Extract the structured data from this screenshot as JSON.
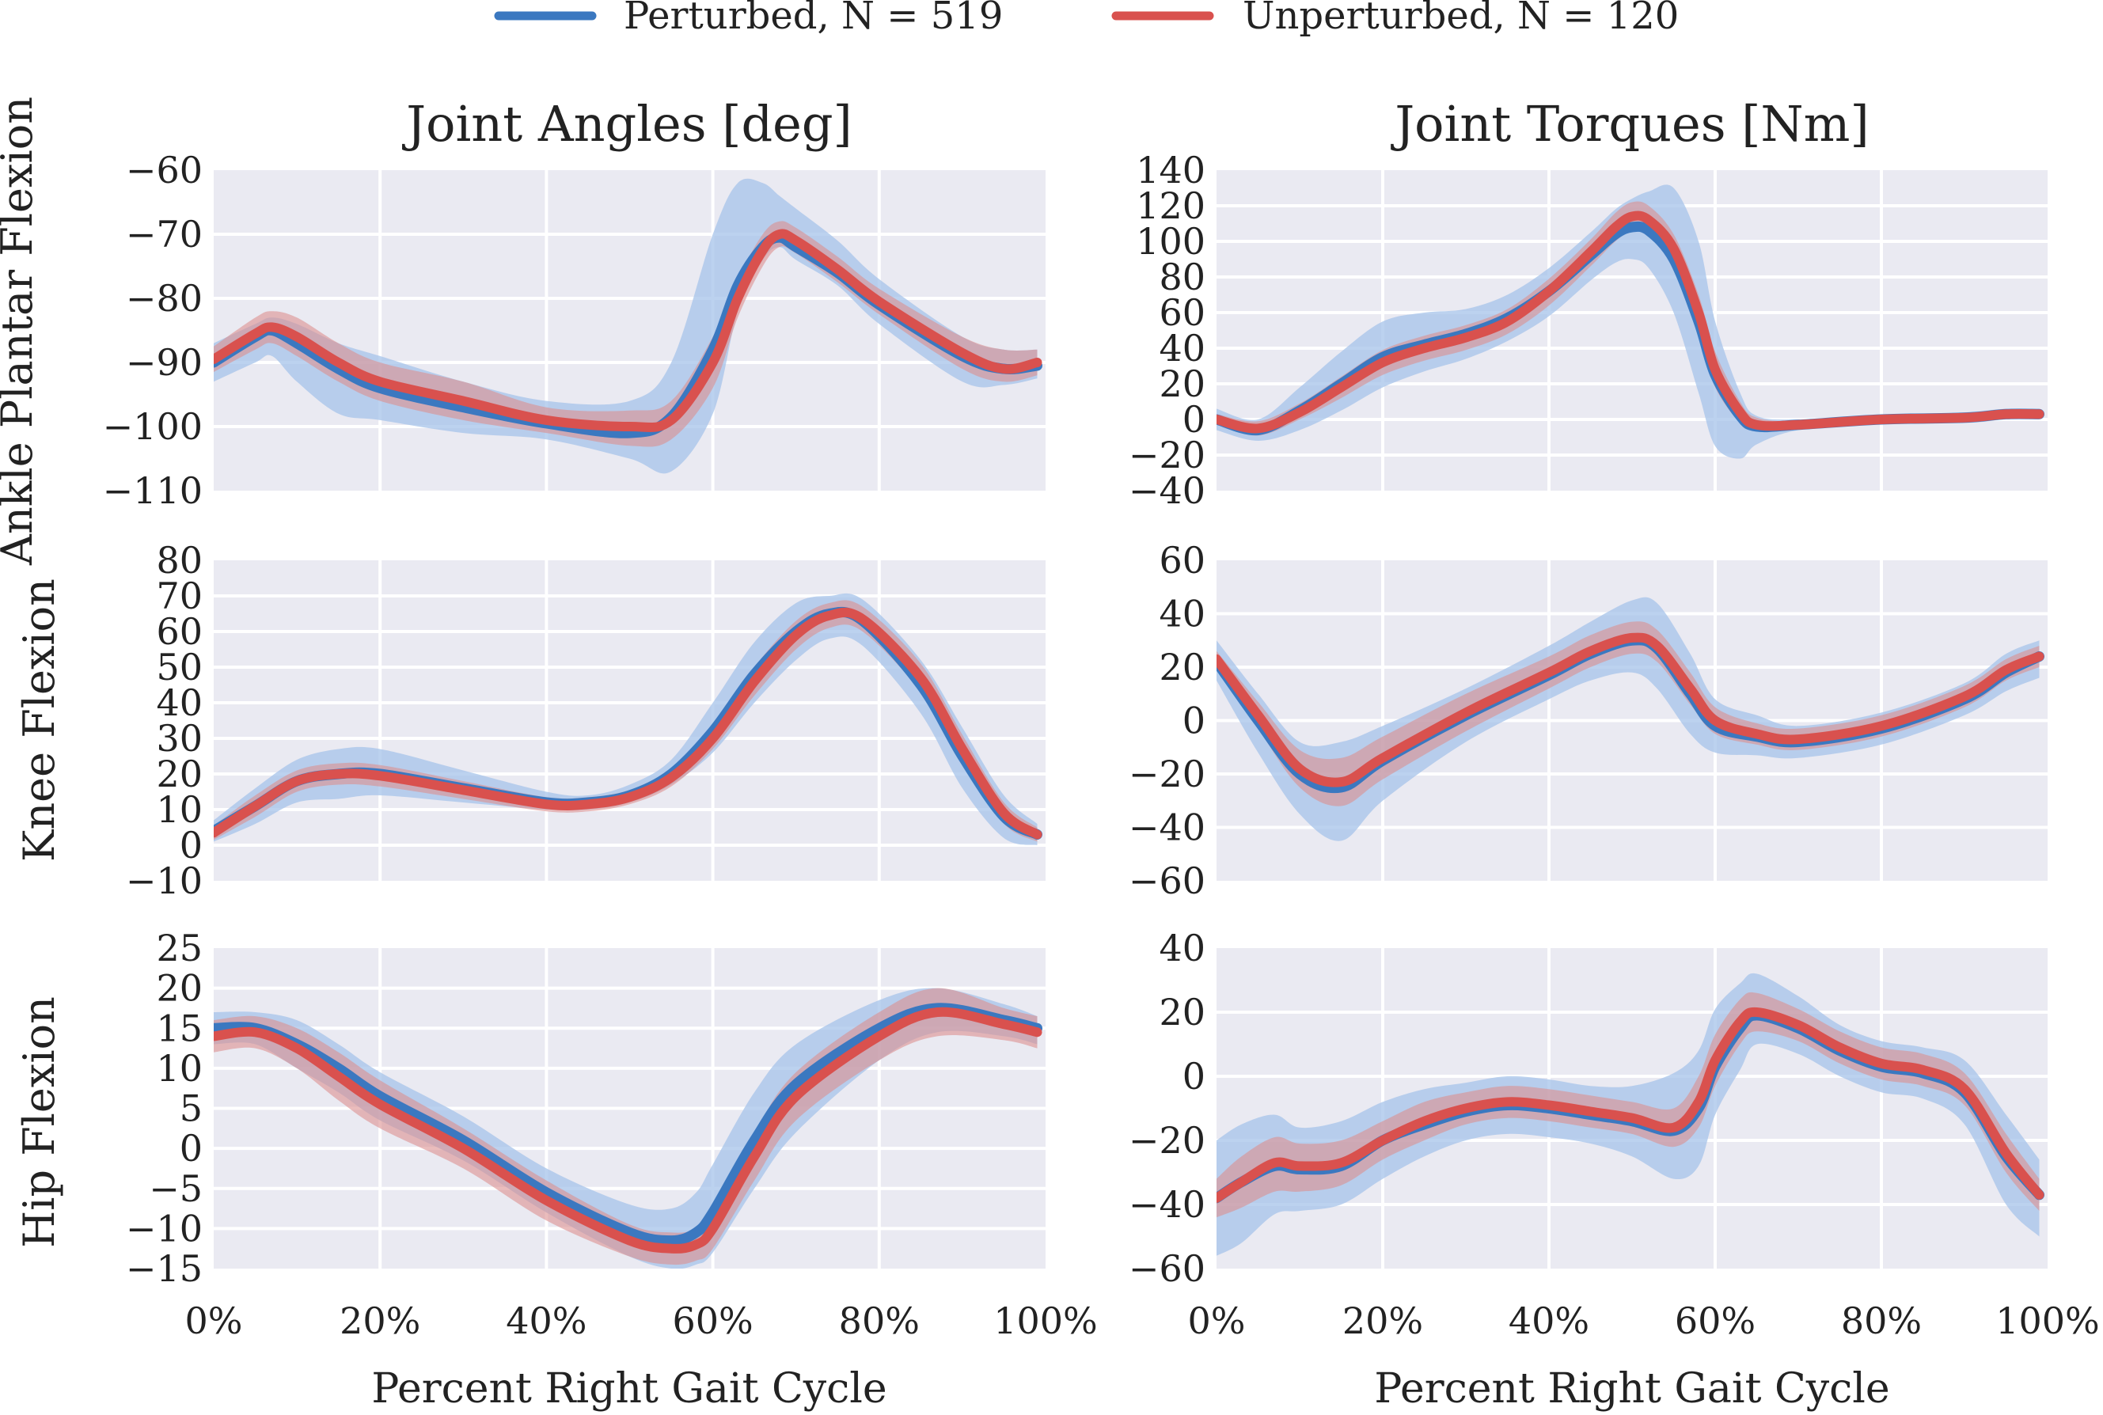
{
  "legend": {
    "entries": [
      {
        "label": "Perturbed, N = 519",
        "color": "#3b78c0"
      },
      {
        "label": "Unperturbed, N = 120",
        "color": "#d9514e"
      }
    ]
  },
  "column_titles": [
    "Joint Angles [deg]",
    "Joint Torques [Nm]"
  ],
  "row_labels": [
    "Ankle Plantar Flexion",
    "Knee Flexion",
    "Hip Flexion"
  ],
  "xlabel": "Percent Right Gait Cycle",
  "x_tick_labels": [
    "0%",
    "20%",
    "40%",
    "60%",
    "80%",
    "100%"
  ],
  "colors": {
    "axes_background": "#eaeaf2",
    "grid": "#ffffff",
    "perturbed_line": "#3b78c0",
    "perturbed_band": "#a6c3ea",
    "unperturbed_line": "#d9514e",
    "unperturbed_band": "#dc8f90"
  },
  "chart_data": [
    {
      "type": "line",
      "panel": "ankle-angle",
      "title": "Joint Angles [deg]",
      "ylabel": "Ankle Plantar Flexion",
      "xlabel": "",
      "x": [
        0,
        5,
        7,
        10,
        15,
        20,
        30,
        40,
        50,
        55,
        60,
        63,
        66,
        68,
        70,
        75,
        80,
        90,
        95,
        99
      ],
      "xlim": [
        0,
        100
      ],
      "ylim": [
        -110,
        -60
      ],
      "yticks": [
        -60,
        -70,
        -80,
        -90,
        -100,
        -110
      ],
      "ytick_labels": [
        "−60",
        "−70",
        "−80",
        "−90",
        "−100",
        "−110"
      ],
      "series": [
        {
          "name": "Perturbed, N = 519",
          "mean": [
            -90,
            -86,
            -85,
            -87,
            -91,
            -94,
            -97,
            -99.5,
            -101,
            -98.5,
            -88,
            -78,
            -72,
            -70.5,
            -72,
            -76,
            -81,
            -89,
            -91,
            -90.5
          ],
          "lower": [
            -93,
            -90,
            -89,
            -93,
            -98,
            -99,
            -101,
            -102,
            -105,
            -107,
            -98,
            -82,
            -74,
            -72,
            -74,
            -78,
            -84,
            -93,
            -93.5,
            -92.5
          ],
          "upper": [
            -87,
            -84,
            -83,
            -84,
            -87,
            -89,
            -93,
            -96,
            -96,
            -90,
            -70,
            -62,
            -62,
            -64,
            -66,
            -71,
            -77,
            -86,
            -88,
            -88
          ]
        },
        {
          "name": "Unperturbed, N = 120",
          "mean": [
            -89.5,
            -85.5,
            -84.5,
            -86,
            -90,
            -93,
            -96,
            -99,
            -100,
            -99,
            -90,
            -80,
            -72.5,
            -70,
            -71,
            -75.5,
            -80.5,
            -88.5,
            -91,
            -90
          ],
          "lower": [
            -91.5,
            -88,
            -87,
            -89,
            -93,
            -96,
            -99,
            -101,
            -103,
            -102,
            -94,
            -83,
            -75,
            -72,
            -73,
            -77.5,
            -82.5,
            -91,
            -93,
            -92
          ],
          "upper": [
            -87.5,
            -83,
            -82,
            -83,
            -87,
            -90,
            -93,
            -97,
            -97.5,
            -96,
            -86,
            -77,
            -70,
            -68,
            -69,
            -73.5,
            -78.5,
            -86,
            -88,
            -88
          ]
        }
      ]
    },
    {
      "type": "line",
      "panel": "ankle-torque",
      "title": "Joint Torques [Nm]",
      "ylabel": "",
      "xlabel": "",
      "x": [
        0,
        5,
        10,
        15,
        20,
        25,
        30,
        35,
        40,
        45,
        48,
        50,
        52,
        55,
        58,
        60,
        63,
        65,
        70,
        80,
        90,
        95,
        99
      ],
      "xlim": [
        0,
        100
      ],
      "ylim": [
        -40,
        140
      ],
      "yticks": [
        -40,
        -20,
        0,
        20,
        40,
        60,
        80,
        100,
        120,
        140
      ],
      "ytick_labels": [
        "−40",
        "−20",
        "0",
        "20",
        "40",
        "60",
        "80",
        "100",
        "120",
        "140"
      ],
      "series": [
        {
          "name": "Perturbed, N = 519",
          "mean": [
            0,
            -6,
            5,
            20,
            35,
            42,
            48,
            57,
            72,
            92,
            104,
            108,
            106,
            90,
            55,
            25,
            2,
            -4,
            -3,
            0,
            1,
            3,
            3
          ],
          "lower": [
            -6,
            -12,
            -6,
            5,
            18,
            27,
            34,
            44,
            58,
            78,
            88,
            90,
            85,
            60,
            15,
            -15,
            -22,
            -14,
            -6,
            -2,
            -2,
            0,
            0
          ],
          "upper": [
            6,
            0,
            18,
            38,
            55,
            60,
            62,
            70,
            85,
            105,
            118,
            124,
            128,
            130,
            100,
            55,
            15,
            2,
            0,
            2,
            4,
            6,
            6
          ]
        },
        {
          "name": "Unperturbed, N = 120",
          "mean": [
            0,
            -5,
            4,
            18,
            32,
            40,
            46,
            55,
            72,
            94,
            108,
            114,
            112,
            96,
            60,
            28,
            4,
            -3,
            -3,
            0,
            1,
            3,
            3
          ],
          "lower": [
            -3,
            -9,
            0,
            12,
            25,
            33,
            39,
            48,
            64,
            86,
            100,
            106,
            104,
            86,
            48,
            18,
            -2,
            -6,
            -5,
            -2,
            -1,
            1,
            1
          ],
          "upper": [
            3,
            -1,
            9,
            24,
            39,
            47,
            53,
            62,
            79,
            101,
            116,
            122,
            120,
            104,
            70,
            38,
            10,
            1,
            -1,
            2,
            3,
            5,
            5
          ]
        }
      ]
    },
    {
      "type": "line",
      "panel": "knee-angle",
      "title": "",
      "ylabel": "Knee Flexion",
      "xlabel": "",
      "x": [
        0,
        5,
        10,
        15,
        20,
        30,
        40,
        45,
        50,
        55,
        60,
        65,
        70,
        74,
        78,
        85,
        90,
        95,
        99
      ],
      "xlim": [
        0,
        100
      ],
      "ylim": [
        -10,
        80
      ],
      "yticks": [
        -10,
        0,
        10,
        20,
        30,
        40,
        50,
        60,
        70,
        80
      ],
      "ytick_labels": [
        "−10",
        "0",
        "10",
        "20",
        "30",
        "40",
        "50",
        "60",
        "70",
        "80"
      ],
      "series": [
        {
          "name": "Perturbed, N = 519",
          "mean": [
            4,
            11,
            18,
            20,
            20,
            16,
            12,
            12,
            14,
            20,
            32,
            48,
            60,
            65,
            63,
            45,
            25,
            8,
            3
          ],
          "lower": [
            1,
            6,
            12,
            13,
            14,
            12,
            10,
            10,
            12,
            17,
            26,
            40,
            52,
            58,
            56,
            37,
            16,
            2,
            0
          ],
          "upper": [
            7,
            16,
            24,
            27,
            27,
            21,
            15,
            14,
            17,
            24,
            40,
            57,
            68,
            70,
            69,
            52,
            33,
            14,
            6
          ]
        },
        {
          "name": "Unperturbed, N = 120",
          "mean": [
            3.5,
            11,
            18,
            20,
            19.5,
            15.5,
            11.5,
            11.5,
            13.5,
            19,
            30,
            46,
            59,
            64.5,
            63.5,
            47,
            27,
            9,
            3
          ],
          "lower": [
            1.5,
            8,
            15,
            17,
            16.5,
            13,
            9.5,
            9.5,
            11.5,
            16.5,
            27,
            42,
            55,
            61,
            60,
            43,
            23,
            6,
            1
          ],
          "upper": [
            5.5,
            14,
            21,
            23,
            22.5,
            18,
            13.5,
            13.5,
            15.5,
            21.5,
            33,
            50,
            63,
            68,
            67,
            51,
            31,
            12,
            5
          ]
        }
      ]
    },
    {
      "type": "line",
      "panel": "knee-torque",
      "title": "",
      "ylabel": "",
      "xlabel": "",
      "x": [
        0,
        5,
        10,
        15,
        20,
        30,
        40,
        45,
        50,
        53,
        57,
        60,
        65,
        70,
        80,
        90,
        95,
        99
      ],
      "xlim": [
        0,
        100
      ],
      "ylim": [
        -60,
        60
      ],
      "yticks": [
        -60,
        -40,
        -20,
        0,
        20,
        40,
        60
      ],
      "ytick_labels": [
        "−60",
        "−40",
        "−20",
        "0",
        "20",
        "40",
        "60"
      ],
      "series": [
        {
          "name": "Perturbed, N = 519",
          "mean": [
            22,
            0,
            -20,
            -25,
            -15,
            2,
            17,
            25,
            30,
            27,
            10,
            -2,
            -6,
            -8,
            -3,
            8,
            18,
            24
          ],
          "lower": [
            15,
            -12,
            -35,
            -45,
            -30,
            -8,
            8,
            15,
            18,
            12,
            -5,
            -12,
            -13,
            -14,
            -9,
            2,
            11,
            16
          ],
          "upper": [
            30,
            10,
            -8,
            -8,
            -2,
            12,
            28,
            37,
            45,
            44,
            25,
            8,
            2,
            -2,
            3,
            14,
            25,
            30
          ]
        },
        {
          "name": "Unperturbed, N = 120",
          "mean": [
            23,
            2,
            -18,
            -23,
            -14,
            3,
            18,
            26,
            31,
            28,
            12,
            0,
            -5,
            -7,
            -2,
            9,
            19,
            24
          ],
          "lower": [
            20,
            -3,
            -25,
            -32,
            -22,
            -4,
            12,
            20,
            25,
            22,
            6,
            -5,
            -9,
            -11,
            -6,
            5,
            15,
            20
          ],
          "upper": [
            26,
            7,
            -11,
            -14,
            -6,
            10,
            24,
            32,
            37,
            34,
            18,
            5,
            -1,
            -3,
            2,
            13,
            23,
            28
          ]
        }
      ]
    },
    {
      "type": "line",
      "panel": "hip-angle",
      "title": "",
      "ylabel": "Hip Flexion",
      "xlabel": "",
      "x": [
        0,
        5,
        10,
        15,
        20,
        30,
        40,
        50,
        55,
        58,
        60,
        65,
        70,
        80,
        87,
        95,
        99
      ],
      "xlim": [
        0,
        100
      ],
      "ylim": [
        -15,
        25
      ],
      "yticks": [
        -15,
        -10,
        -5,
        0,
        5,
        10,
        15,
        20,
        25
      ],
      "ytick_labels": [
        "−15",
        "−10",
        "−5",
        "0",
        "5",
        "10",
        "15",
        "20",
        "25"
      ],
      "series": [
        {
          "name": "Perturbed, N = 519",
          "mean": [
            15,
            15,
            13,
            10,
            6.5,
            1,
            -5.5,
            -10.5,
            -11.5,
            -10.5,
            -8,
            1,
            8,
            15,
            17.5,
            16,
            15
          ],
          "lower": [
            13,
            13,
            10,
            7,
            3.5,
            -1.5,
            -8,
            -13.5,
            -15,
            -14.5,
            -13,
            -5,
            2,
            11,
            14.5,
            14,
            13
          ],
          "upper": [
            17,
            17,
            16,
            13,
            9.5,
            4,
            -2.5,
            -7,
            -7.5,
            -5.5,
            -2,
            7,
            13,
            18.5,
            20,
            18,
            16.5
          ]
        },
        {
          "name": "Unperturbed, N = 120",
          "mean": [
            14,
            14.5,
            12.5,
            9,
            5.5,
            0,
            -6.5,
            -11.5,
            -12.5,
            -12,
            -10,
            -1,
            6.5,
            14,
            17,
            15.5,
            14.5
          ],
          "lower": [
            12,
            12.5,
            10,
            6,
            2.5,
            -2.5,
            -9,
            -13.5,
            -14.5,
            -14,
            -12.5,
            -4,
            3.5,
            11,
            14,
            13.5,
            12.5
          ],
          "upper": [
            16,
            16.5,
            15,
            12,
            8.5,
            2.5,
            -4,
            -9.5,
            -10.5,
            -10,
            -7.5,
            2,
            9.5,
            17,
            20,
            17.5,
            16.5
          ]
        }
      ]
    },
    {
      "type": "line",
      "panel": "hip-torque",
      "title": "",
      "ylabel": "",
      "xlabel": "",
      "x": [
        0,
        3,
        7,
        10,
        15,
        20,
        25,
        30,
        35,
        40,
        45,
        50,
        55,
        58,
        60,
        63,
        65,
        70,
        75,
        80,
        85,
        90,
        95,
        99
      ],
      "xlim": [
        0,
        100
      ],
      "ylim": [
        -60,
        40
      ],
      "yticks": [
        -60,
        -40,
        -20,
        0,
        20,
        40
      ],
      "ytick_labels": [
        "−60",
        "−40",
        "−20",
        "0",
        "20",
        "40"
      ],
      "series": [
        {
          "name": "Perturbed, N = 519",
          "mean": [
            -38,
            -33,
            -28,
            -29,
            -28,
            -20,
            -15,
            -11,
            -9,
            -10,
            -12,
            -14,
            -17,
            -10,
            3,
            15,
            19,
            15,
            8,
            3,
            1,
            -5,
            -25,
            -37
          ],
          "lower": [
            -56,
            -52,
            -43,
            -42,
            -40,
            -32,
            -25,
            -20,
            -18,
            -19,
            -21,
            -25,
            -32,
            -28,
            -12,
            2,
            10,
            7,
            0,
            -5,
            -7,
            -15,
            -40,
            -50
          ],
          "upper": [
            -20,
            -15,
            -12,
            -16,
            -14,
            -8,
            -4,
            -2,
            0,
            -1,
            -3,
            -3,
            1,
            8,
            21,
            29,
            32,
            25,
            16,
            11,
            9,
            5,
            -12,
            -26
          ]
        },
        {
          "name": "Unperturbed, N = 120",
          "mean": [
            -38,
            -33,
            -27,
            -28,
            -27,
            -20,
            -14,
            -10,
            -8,
            -9,
            -11,
            -13,
            -16,
            -8,
            5,
            17,
            20,
            16,
            9,
            4,
            2,
            -4,
            -24,
            -37
          ],
          "lower": [
            -44,
            -41,
            -36,
            -36,
            -34,
            -26,
            -20,
            -15,
            -13,
            -14,
            -16,
            -18,
            -22,
            -16,
            -3,
            10,
            14,
            11,
            4,
            -1,
            -3,
            -9,
            -30,
            -42
          ],
          "upper": [
            -32,
            -25,
            -19,
            -21,
            -20,
            -14,
            -8,
            -5,
            -3,
            -4,
            -6,
            -8,
            -10,
            0,
            13,
            24,
            26,
            21,
            14,
            9,
            7,
            1,
            -18,
            -32
          ]
        }
      ]
    }
  ]
}
